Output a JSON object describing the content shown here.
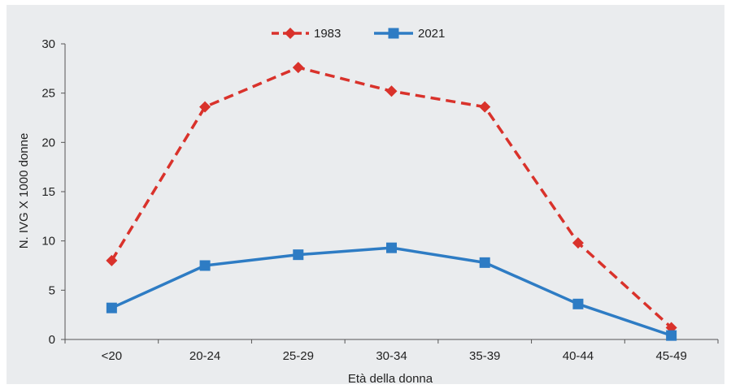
{
  "chart_data": {
    "type": "line",
    "categories": [
      "<20",
      "20-24",
      "25-29",
      "30-34",
      "35-39",
      "40-44",
      "45-49"
    ],
    "series": [
      {
        "name": "1983",
        "values": [
          8.0,
          23.6,
          27.6,
          25.2,
          23.6,
          9.8,
          1.2
        ],
        "color": "#d9322b",
        "dash": "dashed",
        "marker": "diamond"
      },
      {
        "name": "2021",
        "values": [
          3.2,
          7.5,
          8.6,
          9.3,
          7.8,
          3.6,
          0.4
        ],
        "color": "#2e7cc4",
        "dash": "solid",
        "marker": "square"
      }
    ],
    "xlabel": "Età della donna",
    "ylabel": "N. IVG X 1000 donne",
    "ylim": [
      0,
      30
    ],
    "yticks": [
      "0",
      "5",
      "10",
      "15",
      "20",
      "25",
      "30"
    ],
    "grid": false,
    "legend_position": "top-center"
  }
}
